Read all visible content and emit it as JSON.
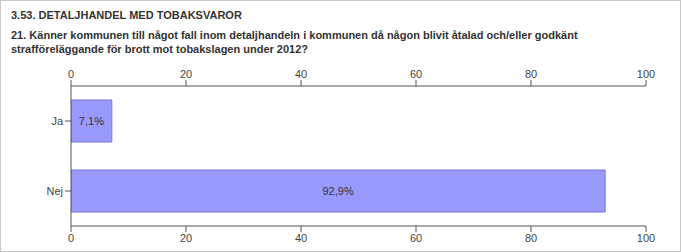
{
  "chart_data": {
    "type": "bar",
    "orientation": "horizontal",
    "title": "3.53. DETALJHANDEL MED TOBAKSVAROR",
    "subtitle": "21. Känner kommunen till något fall inom detaljhandeln i kommunen då någon blivit åtalad och/eller godkänt strafföreläggande för brott mot tobakslagen under 2012?",
    "categories": [
      "Ja",
      "Nej"
    ],
    "values": [
      7.1,
      92.9
    ],
    "value_labels": [
      "7,1%",
      "92,9%"
    ],
    "data_labels": true,
    "color": "#9999ff",
    "xlim": [
      0,
      100
    ],
    "xticks": [
      0,
      20,
      40,
      60,
      80,
      100
    ],
    "grid": false
  }
}
